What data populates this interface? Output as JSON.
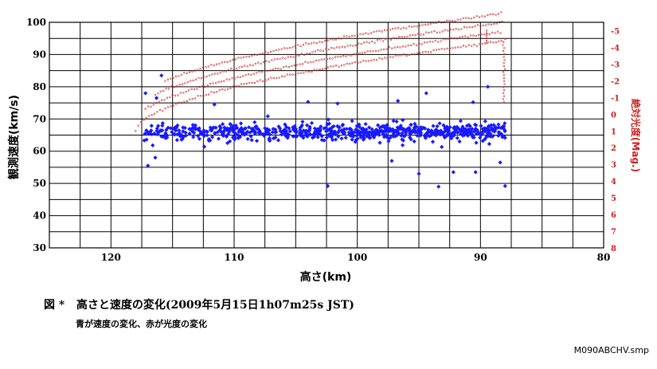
{
  "chart_data": {
    "type": "scatter",
    "title": "",
    "xlabel": "高さ(km)",
    "ylabel": "観測速度(km/s)",
    "y2label": "絶対光度(Mag.)",
    "xlim": [
      125,
      80
    ],
    "ylim": [
      30,
      100
    ],
    "y2lim": [
      8,
      -5.5
    ],
    "x_ticks": [
      "120",
      "110",
      "100",
      "90",
      "80"
    ],
    "y_ticks": [
      "100",
      "90",
      "80",
      "70",
      "60",
      "50",
      "40",
      "30"
    ],
    "y2_ticks": [
      "-5",
      "-4",
      "-3",
      "-2",
      "-1",
      "0",
      "1",
      "2",
      "3",
      "4",
      "5",
      "6",
      "7",
      "8"
    ],
    "grid": true,
    "series": [
      {
        "role": "speed",
        "color": "#1a1aff",
        "marker": "diamond",
        "x_range": [
          117.5,
          88
        ],
        "center": 66,
        "spread": 2.6,
        "count": 760,
        "outliers": [
          [
            115.9,
            83.5
          ],
          [
            117.2,
            78.0
          ],
          [
            116.3,
            76.5
          ],
          [
            111.6,
            74.5
          ],
          [
            104.0,
            75.3
          ],
          [
            101.6,
            74.8
          ],
          [
            96.7,
            75.6
          ],
          [
            94.4,
            78.0
          ],
          [
            89.4,
            80.0
          ],
          [
            90.6,
            75.2
          ],
          [
            117.0,
            55.5
          ],
          [
            116.4,
            58.0
          ],
          [
            102.4,
            49.2
          ],
          [
            97.2,
            57.0
          ],
          [
            95.0,
            53.0
          ],
          [
            93.4,
            49.0
          ],
          [
            92.2,
            53.5
          ],
          [
            90.4,
            53.5
          ],
          [
            88.0,
            49.2
          ],
          [
            88.4,
            56.5
          ]
        ]
      },
      {
        "role": "magnitude",
        "color": "#cc2222",
        "marker": "small-dot",
        "x_range": [
          118,
          88
        ]
      }
    ]
  },
  "caption": {
    "figure_label": "図 *",
    "title": "高さと速度の変化(2009年5月15日1h07m25s JST)",
    "legend_text": "青が速度の変化、赤が光度の変化"
  },
  "filename": "M090ABCHV.smp"
}
